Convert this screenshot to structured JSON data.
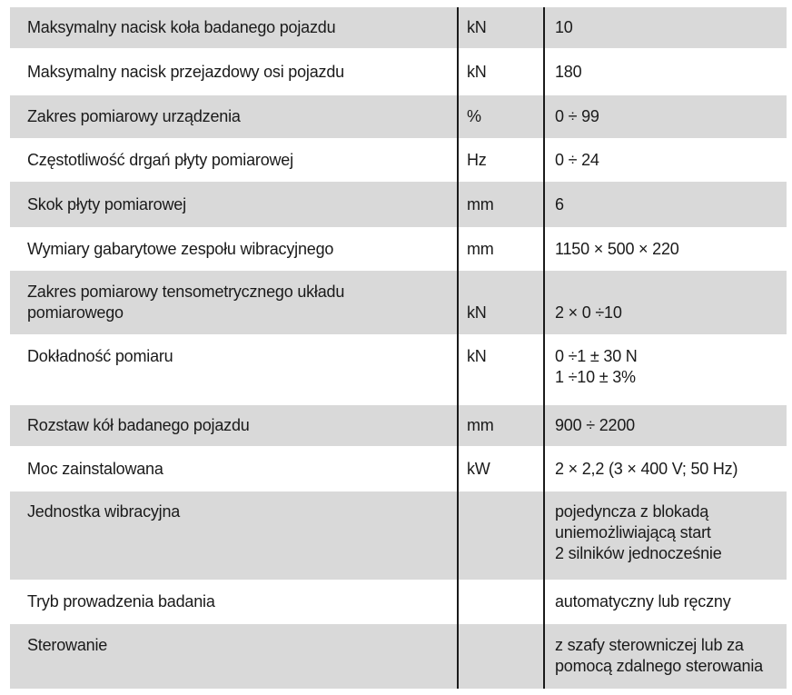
{
  "table": {
    "colors": {
      "row_shade": "#d9d9d9",
      "text": "#1a1a1a",
      "divider": "#1b1b1b",
      "background": "#ffffff"
    },
    "rows": [
      {
        "label": "Maksymalny nacisk koła badanego pojazdu",
        "unit": "kN",
        "value": "10"
      },
      {
        "label": "Maksymalny nacisk przejazdowy osi pojazdu",
        "unit": "kN",
        "value": "180"
      },
      {
        "label": "Zakres pomiarowy urządzenia",
        "unit": "%",
        "value": "0 ÷ 99"
      },
      {
        "label": "Częstotliwość drgań płyty pomiarowej",
        "unit": "Hz",
        "value": "0 ÷ 24"
      },
      {
        "label": "Skok płyty pomiarowej",
        "unit": "mm",
        "value": "6"
      },
      {
        "label": "Wymiary gabarytowe zespołu wibracyjnego",
        "unit": "mm",
        "value": "1150 × 500 × 220"
      },
      {
        "label": "Zakres pomiarowy tensometrycznego układu\npomiarowego",
        "unit": "kN",
        "value": "2 × 0 ÷10"
      },
      {
        "label": "Dokładność pomiaru",
        "unit": "kN",
        "value": "0 ÷1 ± 30 N\n1 ÷10 ± 3%"
      },
      {
        "label": "Rozstaw kół badanego pojazdu",
        "unit": "mm",
        "value": "900 ÷ 2200"
      },
      {
        "label": "Moc zainstalowana",
        "unit": "kW",
        "value": "2 × 2,2 (3 × 400 V; 50 Hz)"
      },
      {
        "label": "Jednostka wibracyjna",
        "unit": "",
        "value": "pojedyncza z blokadą\nuniemożliwiającą start\n2 silników jednocześnie"
      },
      {
        "label": "Tryb prowadzenia badania",
        "unit": "",
        "value": "automatyczny lub ręczny"
      },
      {
        "label": "Sterowanie",
        "unit": "",
        "value": "z szafy sterowniczej lub za\npomocą zdalnego sterowania"
      }
    ]
  }
}
